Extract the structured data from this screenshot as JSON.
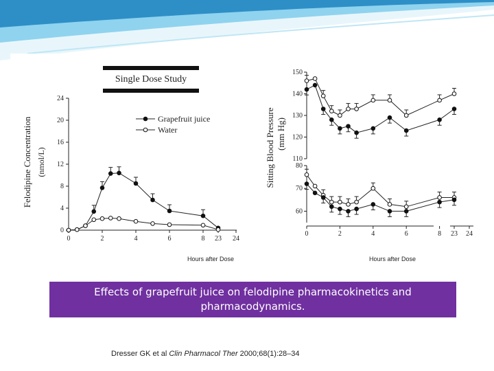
{
  "slide": {
    "caption": "Effects of grapefruit juice on felodipine pharmacokinetics and pharmacodynamics.",
    "reference": {
      "authors": "Dresser GK et al ",
      "journal": "Clin Pharmacol Ther",
      "details": " 2000;68(1):28–34"
    },
    "accent_color": "#7030a0",
    "banner_colors": [
      "#2e8fc7",
      "#8fd3ef",
      "#e8f6fb"
    ]
  },
  "chart_data": [
    {
      "type": "line",
      "title": "Single Dose Study",
      "ylabel": "Felodipine Concentration (nmol/L)",
      "xlabel": "Hours after Dose",
      "ylim": [
        0,
        24
      ],
      "y_ticks": [
        "0",
        "4",
        "8",
        "12",
        "16",
        "20",
        "24"
      ],
      "x_ticks": [
        "0",
        "2",
        "4",
        "6",
        "8",
        "23",
        "24"
      ],
      "legend_position": "top-right",
      "series": [
        {
          "name": "Grapefruit juice",
          "marker": "filled-circle",
          "x": [
            0,
            0.5,
            1,
            1.5,
            2,
            2.5,
            3,
            4,
            5,
            6,
            8,
            23
          ],
          "y": [
            0,
            0.1,
            0.8,
            3.4,
            7.7,
            10.3,
            10.4,
            8.5,
            5.5,
            3.5,
            2.6,
            0.4
          ]
        },
        {
          "name": "Water",
          "marker": "open-circle",
          "x": [
            0,
            0.5,
            1,
            1.5,
            2,
            2.5,
            3,
            4,
            5,
            6,
            8,
            23
          ],
          "y": [
            0,
            0.1,
            0.8,
            1.9,
            2.1,
            2.2,
            2.1,
            1.6,
            1.2,
            1.0,
            0.9,
            0.1
          ]
        }
      ]
    },
    {
      "type": "line",
      "ylabel": "Sitting Blood Pressure (mm Hg)",
      "xlabel": "Hours after Dose",
      "upper_ylim": [
        110,
        150
      ],
      "lower_ylim": [
        55,
        80
      ],
      "upper_y_ticks": [
        "110",
        "120",
        "130",
        "140",
        "150"
      ],
      "lower_y_ticks": [
        "60",
        "70",
        "80"
      ],
      "x_ticks": [
        "0",
        "2",
        "4",
        "6",
        "8",
        "23",
        "24"
      ],
      "series": [
        {
          "group": "systolic",
          "marker": "open-circle",
          "x": [
            0,
            0.5,
            1,
            1.5,
            2,
            2.5,
            3,
            4,
            5,
            6,
            8,
            23
          ],
          "y": [
            146,
            147,
            139,
            132,
            130,
            133,
            133,
            137,
            137,
            130,
            137,
            140
          ]
        },
        {
          "group": "systolic",
          "marker": "filled-circle",
          "x": [
            0,
            0.5,
            1,
            1.5,
            2,
            2.5,
            3,
            4,
            5,
            6,
            8,
            23
          ],
          "y": [
            142,
            144,
            133,
            128,
            124,
            125,
            122,
            124,
            129,
            123,
            128,
            133
          ]
        },
        {
          "group": "diastolic",
          "marker": "open-circle",
          "x": [
            0,
            0.5,
            1,
            1.5,
            2,
            2.5,
            3,
            4,
            5,
            6,
            8,
            23
          ],
          "y": [
            76,
            71,
            67,
            64,
            64,
            63,
            64,
            70,
            63,
            62,
            66,
            66
          ]
        },
        {
          "group": "diastolic",
          "marker": "filled-circle",
          "x": [
            0,
            0.5,
            1,
            1.5,
            2,
            2.5,
            3,
            4,
            5,
            6,
            8,
            23
          ],
          "y": [
            72,
            68,
            66,
            62,
            61,
            60,
            61,
            63,
            60,
            60,
            64,
            65
          ]
        }
      ]
    }
  ]
}
